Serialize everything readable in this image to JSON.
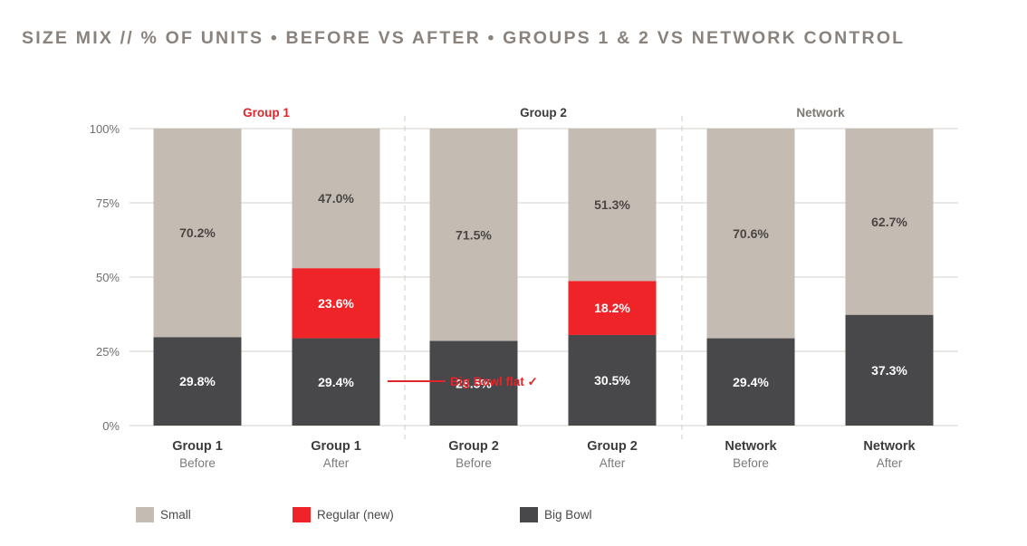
{
  "title": "SIZE MIX // % OF UNITS • BEFORE VS AFTER • GROUPS 1 & 2 VS NETWORK CONTROL",
  "colors": {
    "small": "#c4bbb2",
    "regular": "#ee2428",
    "big_bowl": "#48484b",
    "axis_text": "#6e6e6e",
    "group1_header": "#e0262a",
    "header_dark": "#3a3a3a",
    "header_muted": "#7d7872",
    "annotation": "#e0262a"
  },
  "annotation": {
    "text": "Big Bowl flat ✓"
  },
  "chart_data": {
    "type": "bar",
    "stacked": true,
    "yaxis": {
      "ticks": [
        "0%",
        "25%",
        "50%",
        "75%",
        "100%"
      ],
      "ylim": [
        0,
        100
      ]
    },
    "groups": [
      {
        "name": "Group 1",
        "header_style": "red"
      },
      {
        "name": "Group 2",
        "header_style": "dark"
      },
      {
        "name": "Network",
        "header_style": "muted"
      }
    ],
    "categories": [
      {
        "name": "Group 1",
        "period": "Before"
      },
      {
        "name": "Group 1",
        "period": "After"
      },
      {
        "name": "Group 2",
        "period": "Before"
      },
      {
        "name": "Group 2",
        "period": "After"
      },
      {
        "name": "Network",
        "period": "Before"
      },
      {
        "name": "Network",
        "period": "After"
      }
    ],
    "series": [
      {
        "name": "Big Bowl",
        "key": "big_bowl",
        "values": [
          29.8,
          29.4,
          28.5,
          30.5,
          29.4,
          37.3
        ],
        "labels": [
          "29.8%",
          "29.4%",
          "28.5%",
          "30.5%",
          "29.4%",
          "37.3%"
        ]
      },
      {
        "name": "Regular (new)",
        "key": "regular",
        "values": [
          0,
          23.6,
          0,
          18.2,
          0,
          0
        ],
        "labels": [
          "",
          "23.6%",
          "",
          "18.2%",
          "",
          ""
        ]
      },
      {
        "name": "Small",
        "key": "small",
        "values": [
          70.2,
          47.0,
          71.5,
          51.3,
          70.6,
          62.7
        ],
        "labels": [
          "70.2%",
          "47.0%",
          "71.5%",
          "51.3%",
          "70.6%",
          "62.7%"
        ]
      }
    ],
    "legend": [
      {
        "name": "Small",
        "key": "small"
      },
      {
        "name": "Regular (new)",
        "key": "regular"
      },
      {
        "name": "Big Bowl",
        "key": "big_bowl"
      }
    ],
    "legend_position": "bottom-left",
    "grid": true
  }
}
